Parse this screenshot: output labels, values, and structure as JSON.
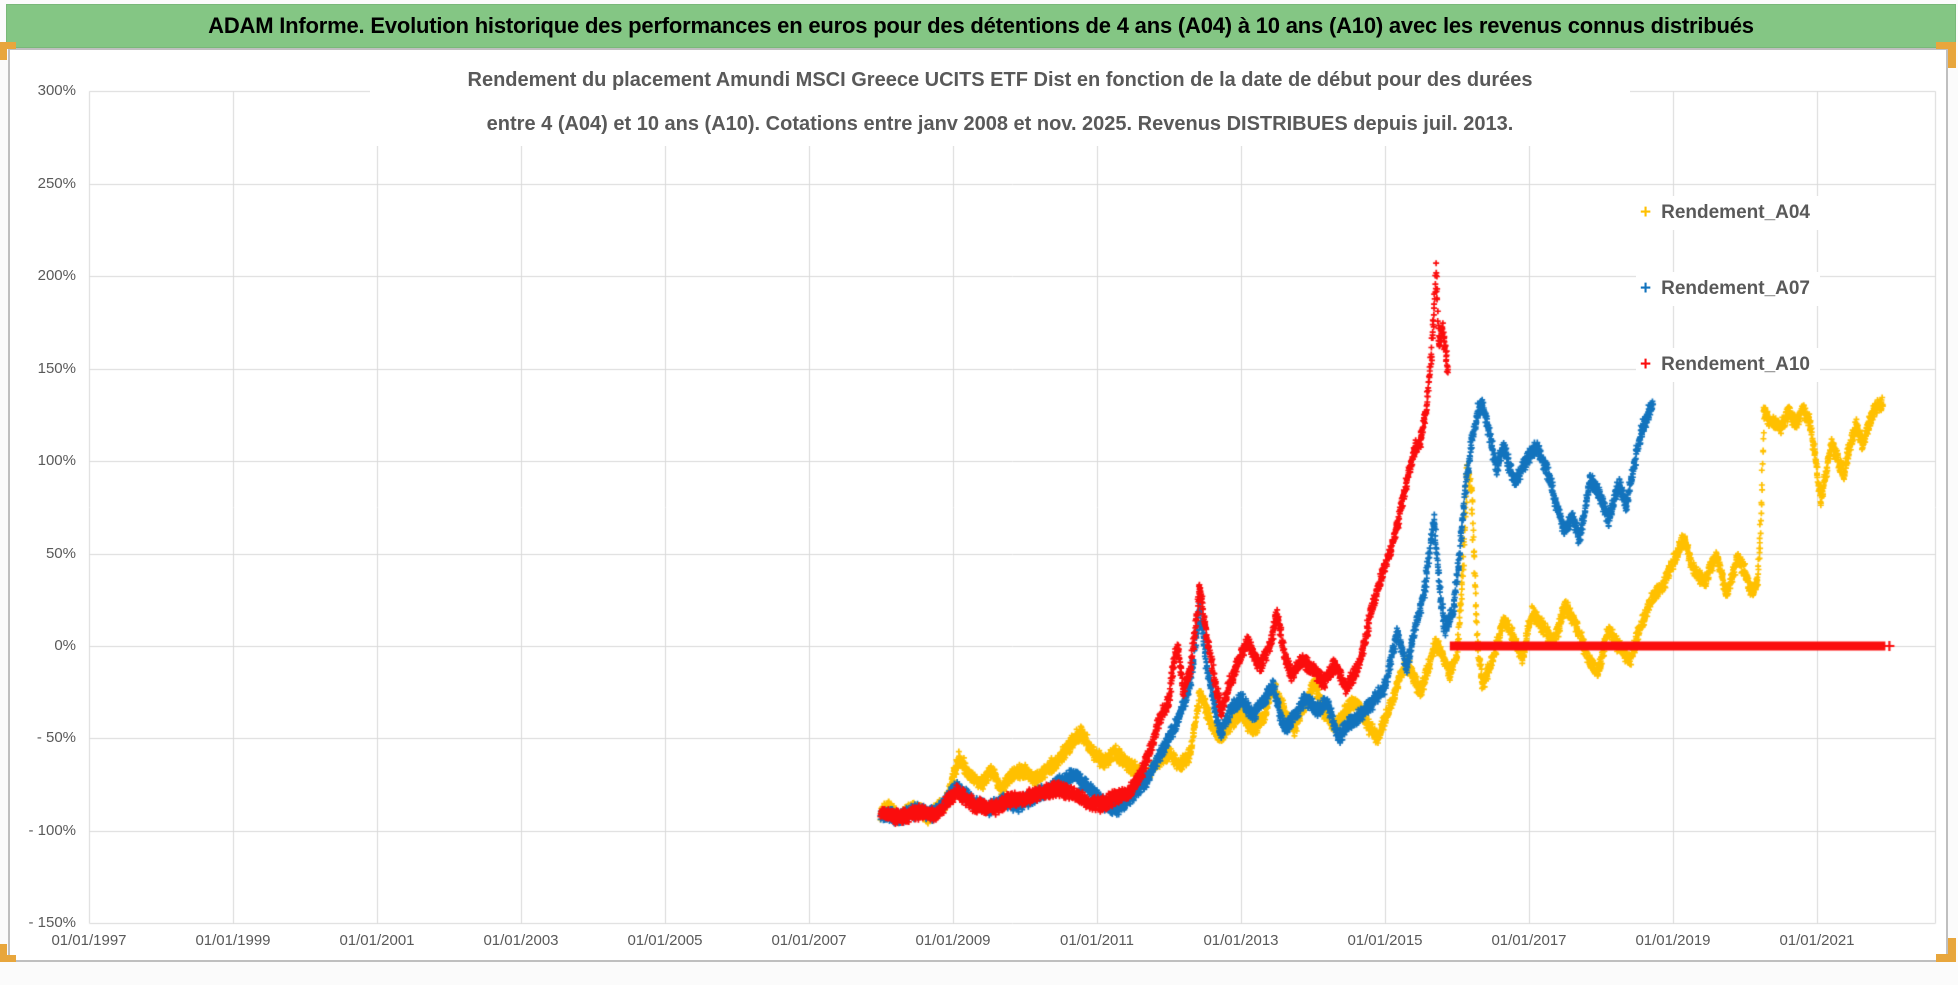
{
  "header": {
    "title": "ADAM Informe. Evolution historique des performances en euros pour des détentions de 4 ans (A04) à 10 ans (A10) avec les revenus connus distribués"
  },
  "colors": {
    "banner_bg": "#84C684",
    "banner_text": "#000000",
    "panel_border": "#BFBFBF",
    "gridline": "#D9D9D9",
    "axis_text": "#595959",
    "title_text": "#595959",
    "selection_handle_gold": "#E8A63C",
    "series_a04": "#FFC000",
    "series_a07": "#1273BD",
    "series_a10": "#FB0D0D"
  },
  "chart_data": {
    "type": "scatter",
    "title": "Rendement du placement Amundi MSCI Greece UCITS ETF Dist en fonction de la date de début pour des durées",
    "subtitle": "entre 4 (A04) et 10 ans (A10). Cotations entre janv 2008 et nov. 2025. Revenus DISTRIBUES depuis juil. 2013.",
    "x_axis": {
      "min_year": 1997,
      "max_year": 2022.6,
      "tick_years": [
        1997,
        1999,
        2001,
        2003,
        2005,
        2007,
        2009,
        2011,
        2013,
        2015,
        2017,
        2019,
        2021
      ],
      "tick_labels": [
        "01/01/1997",
        "01/01/1999",
        "01/01/2001",
        "01/01/2003",
        "01/01/2005",
        "01/01/2007",
        "01/01/2009",
        "01/01/2011",
        "01/01/2013",
        "01/01/2015",
        "01/01/2017",
        "01/01/2019",
        "01/01/2021"
      ],
      "gridlines": true
    },
    "y_axis": {
      "min": -150,
      "max": 300,
      "unit": "%",
      "tick_values": [
        300,
        250,
        200,
        150,
        100,
        50,
        0,
        -50,
        -100,
        -150
      ],
      "tick_labels": [
        "300%",
        "250%",
        "200%",
        "150%",
        "100%",
        "50%",
        "0%",
        "- 50%",
        "- 100%",
        "- 150%"
      ],
      "gridlines": true
    },
    "legend": {
      "position": "right",
      "marker_char": "+"
    },
    "series": [
      {
        "name": "Rendement_A04",
        "color": "#FFC000",
        "marker": "+",
        "noise_pct": 4,
        "seed": 7,
        "keyframes": [
          [
            2008.0,
            -90
          ],
          [
            2008.1,
            -86
          ],
          [
            2008.25,
            -93
          ],
          [
            2008.45,
            -88
          ],
          [
            2008.65,
            -92
          ],
          [
            2008.9,
            -85
          ],
          [
            2009.08,
            -61
          ],
          [
            2009.25,
            -70
          ],
          [
            2009.4,
            -75
          ],
          [
            2009.55,
            -66
          ],
          [
            2009.65,
            -78
          ],
          [
            2009.8,
            -70
          ],
          [
            2010.0,
            -67
          ],
          [
            2010.15,
            -72
          ],
          [
            2010.3,
            -67
          ],
          [
            2010.45,
            -62
          ],
          [
            2010.6,
            -55
          ],
          [
            2010.78,
            -46
          ],
          [
            2010.95,
            -58
          ],
          [
            2011.1,
            -63
          ],
          [
            2011.25,
            -57
          ],
          [
            2011.4,
            -63
          ],
          [
            2011.55,
            -67
          ],
          [
            2011.7,
            -70
          ],
          [
            2011.85,
            -62
          ],
          [
            2012.0,
            -58
          ],
          [
            2012.15,
            -65
          ],
          [
            2012.3,
            -58
          ],
          [
            2012.43,
            -25
          ],
          [
            2012.55,
            -38
          ],
          [
            2012.7,
            -50
          ],
          [
            2012.85,
            -42
          ],
          [
            2013.0,
            -36
          ],
          [
            2013.15,
            -46
          ],
          [
            2013.3,
            -40
          ],
          [
            2013.45,
            -22
          ],
          [
            2013.6,
            -35
          ],
          [
            2013.75,
            -45
          ],
          [
            2013.9,
            -30
          ],
          [
            2014.02,
            -20
          ],
          [
            2014.15,
            -35
          ],
          [
            2014.3,
            -44
          ],
          [
            2014.45,
            -35
          ],
          [
            2014.6,
            -30
          ],
          [
            2014.75,
            -42
          ],
          [
            2014.9,
            -50
          ],
          [
            2015.05,
            -35
          ],
          [
            2015.2,
            -18
          ],
          [
            2015.3,
            -8
          ],
          [
            2015.4,
            -18
          ],
          [
            2015.5,
            -25
          ],
          [
            2015.6,
            -12
          ],
          [
            2015.7,
            2
          ],
          [
            2015.8,
            -5
          ],
          [
            2015.9,
            -15
          ],
          [
            2016.0,
            -5
          ],
          [
            2016.08,
            40
          ],
          [
            2016.14,
            95
          ],
          [
            2016.2,
            85
          ],
          [
            2016.28,
            5
          ],
          [
            2016.35,
            -22
          ],
          [
            2016.45,
            -12
          ],
          [
            2016.55,
            0
          ],
          [
            2016.65,
            15
          ],
          [
            2016.78,
            5
          ],
          [
            2016.9,
            -6
          ],
          [
            2017.05,
            18
          ],
          [
            2017.2,
            10
          ],
          [
            2017.35,
            2
          ],
          [
            2017.5,
            22
          ],
          [
            2017.65,
            12
          ],
          [
            2017.8,
            -5
          ],
          [
            2017.95,
            -15
          ],
          [
            2018.1,
            8
          ],
          [
            2018.25,
            0
          ],
          [
            2018.4,
            -8
          ],
          [
            2018.55,
            10
          ],
          [
            2018.7,
            25
          ],
          [
            2018.85,
            32
          ],
          [
            2019.0,
            45
          ],
          [
            2019.15,
            58
          ],
          [
            2019.3,
            40
          ],
          [
            2019.45,
            35
          ],
          [
            2019.6,
            50
          ],
          [
            2019.75,
            28
          ],
          [
            2019.9,
            48
          ],
          [
            2020.0,
            40
          ],
          [
            2020.1,
            28
          ],
          [
            2020.18,
            35
          ],
          [
            2020.22,
            65
          ],
          [
            2020.26,
            128
          ],
          [
            2020.35,
            122
          ],
          [
            2020.5,
            118
          ],
          [
            2020.6,
            127
          ],
          [
            2020.7,
            120
          ],
          [
            2020.8,
            128
          ],
          [
            2020.9,
            122
          ],
          [
            2021.0,
            95
          ],
          [
            2021.05,
            78
          ],
          [
            2021.12,
            92
          ],
          [
            2021.2,
            110
          ],
          [
            2021.3,
            100
          ],
          [
            2021.38,
            92
          ],
          [
            2021.45,
            108
          ],
          [
            2021.55,
            120
          ],
          [
            2021.63,
            108
          ],
          [
            2021.7,
            118
          ],
          [
            2021.8,
            128
          ],
          [
            2021.92,
            131
          ]
        ]
      },
      {
        "name": "Rendement_A07",
        "color": "#1273BD",
        "marker": "+",
        "noise_pct": 4,
        "seed": 13,
        "keyframes": [
          [
            2008.0,
            -90
          ],
          [
            2008.25,
            -93
          ],
          [
            2008.5,
            -89
          ],
          [
            2008.75,
            -91
          ],
          [
            2009.05,
            -76
          ],
          [
            2009.3,
            -85
          ],
          [
            2009.5,
            -88
          ],
          [
            2009.7,
            -83
          ],
          [
            2009.9,
            -86
          ],
          [
            2010.1,
            -82
          ],
          [
            2010.3,
            -78
          ],
          [
            2010.55,
            -72
          ],
          [
            2010.7,
            -70
          ],
          [
            2010.9,
            -78
          ],
          [
            2011.1,
            -85
          ],
          [
            2011.25,
            -89
          ],
          [
            2011.4,
            -84
          ],
          [
            2011.55,
            -78
          ],
          [
            2011.7,
            -72
          ],
          [
            2011.85,
            -60
          ],
          [
            2012.0,
            -50
          ],
          [
            2012.15,
            -38
          ],
          [
            2012.3,
            -20
          ],
          [
            2012.43,
            22
          ],
          [
            2012.52,
            -10
          ],
          [
            2012.62,
            -30
          ],
          [
            2012.72,
            -48
          ],
          [
            2012.85,
            -35
          ],
          [
            2013.0,
            -28
          ],
          [
            2013.15,
            -38
          ],
          [
            2013.3,
            -30
          ],
          [
            2013.45,
            -22
          ],
          [
            2013.6,
            -45
          ],
          [
            2013.75,
            -38
          ],
          [
            2013.9,
            -28
          ],
          [
            2014.05,
            -35
          ],
          [
            2014.2,
            -30
          ],
          [
            2014.35,
            -50
          ],
          [
            2014.5,
            -42
          ],
          [
            2014.65,
            -38
          ],
          [
            2014.8,
            -32
          ],
          [
            2015.0,
            -22
          ],
          [
            2015.1,
            -5
          ],
          [
            2015.17,
            8
          ],
          [
            2015.3,
            -12
          ],
          [
            2015.45,
            15
          ],
          [
            2015.55,
            30
          ],
          [
            2015.63,
            55
          ],
          [
            2015.68,
            68
          ],
          [
            2015.76,
            30
          ],
          [
            2015.83,
            8
          ],
          [
            2015.95,
            20
          ],
          [
            2016.05,
            55
          ],
          [
            2016.12,
            85
          ],
          [
            2016.2,
            110
          ],
          [
            2016.3,
            128
          ],
          [
            2016.35,
            131
          ],
          [
            2016.45,
            115
          ],
          [
            2016.55,
            95
          ],
          [
            2016.65,
            108
          ],
          [
            2016.8,
            88
          ],
          [
            2016.95,
            100
          ],
          [
            2017.1,
            108
          ],
          [
            2017.25,
            95
          ],
          [
            2017.35,
            80
          ],
          [
            2017.5,
            62
          ],
          [
            2017.6,
            70
          ],
          [
            2017.7,
            58
          ],
          [
            2017.85,
            90
          ],
          [
            2018.0,
            80
          ],
          [
            2018.1,
            68
          ],
          [
            2018.25,
            88
          ],
          [
            2018.35,
            75
          ],
          [
            2018.45,
            95
          ],
          [
            2018.55,
            115
          ],
          [
            2018.72,
            132
          ]
        ]
      },
      {
        "name": "Rendement_A10",
        "color": "#FB0D0D",
        "marker": "+",
        "noise_pct": 4,
        "seed": 29,
        "keyframes": [
          [
            2008.0,
            -90
          ],
          [
            2008.25,
            -93
          ],
          [
            2008.5,
            -90
          ],
          [
            2008.75,
            -91
          ],
          [
            2009.05,
            -79
          ],
          [
            2009.3,
            -86
          ],
          [
            2009.55,
            -88
          ],
          [
            2009.75,
            -84
          ],
          [
            2010.0,
            -82
          ],
          [
            2010.2,
            -80
          ],
          [
            2010.45,
            -77
          ],
          [
            2010.65,
            -80
          ],
          [
            2010.85,
            -84
          ],
          [
            2011.05,
            -86
          ],
          [
            2011.25,
            -82
          ],
          [
            2011.45,
            -79
          ],
          [
            2011.6,
            -70
          ],
          [
            2011.75,
            -55
          ],
          [
            2011.88,
            -38
          ],
          [
            2012.0,
            -30
          ],
          [
            2012.08,
            -5
          ],
          [
            2012.13,
            0
          ],
          [
            2012.2,
            -25
          ],
          [
            2012.3,
            -12
          ],
          [
            2012.43,
            33
          ],
          [
            2012.52,
            5
          ],
          [
            2012.62,
            -15
          ],
          [
            2012.72,
            -36
          ],
          [
            2012.85,
            -20
          ],
          [
            2013.0,
            -5
          ],
          [
            2013.1,
            3
          ],
          [
            2013.25,
            -12
          ],
          [
            2013.4,
            0
          ],
          [
            2013.5,
            18
          ],
          [
            2013.6,
            -5
          ],
          [
            2013.7,
            -16
          ],
          [
            2013.85,
            -8
          ],
          [
            2014.0,
            -12
          ],
          [
            2014.15,
            -20
          ],
          [
            2014.3,
            -10
          ],
          [
            2014.45,
            -22
          ],
          [
            2014.6,
            -14
          ],
          [
            2014.7,
            -2
          ],
          [
            2014.8,
            18
          ],
          [
            2014.95,
            38
          ],
          [
            2015.1,
            55
          ],
          [
            2015.2,
            70
          ],
          [
            2015.3,
            88
          ],
          [
            2015.4,
            105
          ],
          [
            2015.5,
            112
          ],
          [
            2015.58,
            130
          ],
          [
            2015.64,
            155
          ],
          [
            2015.68,
            180
          ],
          [
            2015.71,
            205
          ],
          [
            2015.75,
            162
          ],
          [
            2015.8,
            172
          ],
          [
            2015.85,
            156
          ],
          [
            2015.88,
            148
          ]
        ],
        "zero_line": {
          "from_year": 2015.9,
          "to_year": 2021.95,
          "value": 0,
          "thickness_px": 9
        }
      }
    ]
  }
}
